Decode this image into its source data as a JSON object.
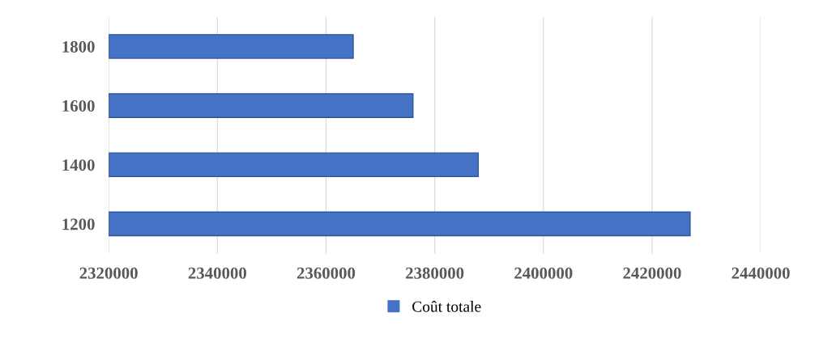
{
  "chart_data": {
    "type": "bar",
    "orientation": "horizontal",
    "categories": [
      "1800",
      "1600",
      "1400",
      "1200"
    ],
    "series": [
      {
        "name": "Coût totale",
        "color": "#4472c4",
        "values": [
          2365000,
          2376000,
          2388000,
          2427000
        ]
      }
    ],
    "xlim": [
      2320000,
      2440000
    ],
    "xticks": [
      2320000,
      2340000,
      2360000,
      2380000,
      2400000,
      2420000,
      2440000
    ],
    "grid": "x",
    "legend": "bottom"
  }
}
